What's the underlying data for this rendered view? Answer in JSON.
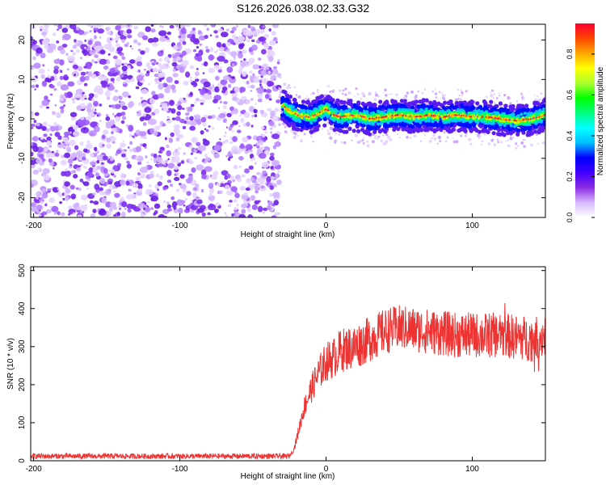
{
  "title": "S126.2026.038.02.33.G32",
  "chart_data": [
    {
      "type": "heatmap",
      "xlabel": "Height of straight line (km)",
      "ylabel": "Frequency (Hz)",
      "xlim": [
        -202,
        150
      ],
      "ylim": [
        -25,
        24
      ],
      "x_ticks": [
        -200,
        -100,
        0,
        100
      ],
      "y_ticks": [
        -20,
        -10,
        0,
        10,
        20
      ],
      "noise_region_x": [
        -202,
        -32
      ],
      "signal_region_x": [
        -32,
        150
      ],
      "signal_track": {
        "x": [
          -32,
          -25,
          -20,
          -15,
          -10,
          -5,
          0,
          5,
          10,
          20,
          30,
          40,
          50,
          60,
          70,
          80,
          90,
          100,
          110,
          120,
          130,
          140,
          150
        ],
        "freq": [
          4,
          2,
          1,
          0.5,
          0.5,
          1.5,
          2.5,
          1,
          0.5,
          1,
          0,
          0.5,
          1,
          0.5,
          1,
          0.5,
          1,
          0.5,
          0.5,
          0,
          -0.5,
          0,
          1
        ]
      },
      "grid": false,
      "colorbar": {
        "label": "Normalized spectral amplitude",
        "range": [
          0,
          0.95
        ],
        "ticks": [
          "0.0",
          "0.2",
          "0.4",
          "0.6",
          "0.8"
        ],
        "tick_values": [
          0,
          0.2,
          0.4,
          0.6,
          0.8
        ],
        "colormap": [
          "#ffffff",
          "#d9b8ff",
          "#8a2be2",
          "#4000ff",
          "#0000ff",
          "#00bfff",
          "#00ffff",
          "#00ff7f",
          "#00ff00",
          "#adff2f",
          "#ffff00",
          "#ffa500",
          "#ff4500",
          "#ff0033"
        ]
      }
    },
    {
      "type": "line",
      "xlabel": "Height of straight line (km)",
      "ylabel": "SNR (10 * v/v)",
      "xlim": [
        -202,
        150
      ],
      "ylim": [
        0,
        510
      ],
      "x_ticks": [
        -200,
        -100,
        0,
        100
      ],
      "y_ticks": [
        0,
        100,
        200,
        300,
        400,
        500
      ],
      "color": "#ee3333",
      "envelope": {
        "x": [
          -202,
          -100,
          -25,
          -22,
          -20,
          -15,
          -10,
          -5,
          0,
          5,
          10,
          20,
          30,
          40,
          50,
          60,
          70,
          80,
          90,
          100,
          110,
          120,
          130,
          140,
          150
        ],
        "y": [
          12,
          12,
          12,
          30,
          60,
          140,
          190,
          230,
          260,
          270,
          290,
          300,
          320,
          340,
          350,
          345,
          340,
          335,
          330,
          330,
          330,
          330,
          325,
          320,
          330
        ]
      },
      "noise_amplitude": [
        7,
        60
      ]
    }
  ]
}
